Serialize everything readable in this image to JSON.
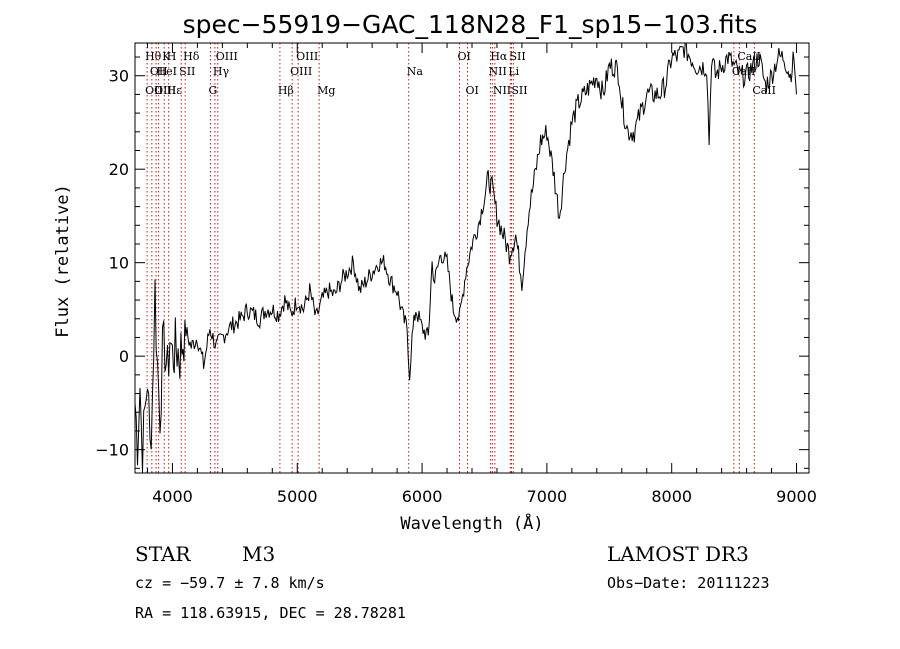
{
  "chart_data": {
    "type": "line",
    "title": "spec−55919−GAC_118N28_F1_sp15−103.fits",
    "xlabel": "Wavelength (Å)",
    "ylabel": "Flux (relative)",
    "xlim": [
      3700,
      9100
    ],
    "ylim": [
      -12.5,
      33.5
    ],
    "xticks": [
      4000,
      5000,
      6000,
      7000,
      8000,
      9000
    ],
    "yticks": [
      -10,
      0,
      10,
      20,
      30
    ],
    "grid": false,
    "series": [
      {
        "name": "spectrum",
        "x": [
          3700,
          3720,
          3740,
          3760,
          3780,
          3800,
          3820,
          3840,
          3860,
          3880,
          3900,
          3920,
          3940,
          3960,
          3980,
          4000,
          4030,
          4060,
          4100,
          4150,
          4200,
          4250,
          4300,
          4350,
          4400,
          4450,
          4500,
          4550,
          4600,
          4650,
          4700,
          4750,
          4800,
          4850,
          4900,
          4950,
          5000,
          5050,
          5100,
          5150,
          5200,
          5250,
          5300,
          5350,
          5400,
          5450,
          5500,
          5550,
          5600,
          5650,
          5700,
          5750,
          5800,
          5850,
          5880,
          5900,
          5920,
          5950,
          6000,
          6050,
          6080,
          6100,
          6150,
          6200,
          6250,
          6300,
          6350,
          6400,
          6450,
          6500,
          6530,
          6560,
          6600,
          6650,
          6700,
          6750,
          6780,
          6800,
          6850,
          6900,
          6950,
          7000,
          7050,
          7100,
          7150,
          7200,
          7250,
          7300,
          7350,
          7400,
          7450,
          7500,
          7550,
          7580,
          7600,
          7650,
          7700,
          7750,
          7800,
          7850,
          7900,
          7950,
          8000,
          8050,
          8100,
          8150,
          8200,
          8250,
          8280,
          8300,
          8320,
          8350,
          8400,
          8450,
          8500,
          8550,
          8600,
          8650,
          8700,
          8750,
          8800,
          8850,
          8900,
          8950,
          8980,
          9000
        ],
        "values": [
          -5,
          -9,
          -3,
          -11,
          -6,
          -2,
          -10,
          -4,
          7,
          -1,
          -6,
          0,
          1,
          -2,
          2,
          0,
          1,
          0,
          3,
          1,
          2,
          -1,
          3,
          1,
          2,
          3,
          3.5,
          4,
          5,
          4.5,
          4,
          5,
          5,
          4.5,
          6,
          4.5,
          6,
          5,
          7,
          4,
          6,
          7,
          6.5,
          8,
          9,
          10,
          7,
          8,
          9,
          10,
          10,
          8,
          7,
          4,
          3,
          -2,
          2,
          5,
          3,
          2,
          10,
          8,
          11,
          10,
          5,
          4,
          9,
          12,
          14,
          17,
          19,
          18,
          15,
          13,
          11,
          13,
          10,
          8,
          15,
          19,
          23,
          24,
          20,
          15,
          21,
          25,
          27,
          28,
          29,
          30,
          28,
          31,
          31,
          30,
          27,
          24,
          24,
          26,
          28,
          28,
          28,
          29,
          32,
          32,
          33,
          32,
          31,
          31,
          31,
          23,
          32,
          30,
          31,
          32,
          31,
          30,
          30,
          31,
          32,
          29,
          30,
          32,
          32,
          30,
          32,
          28
        ]
      }
    ],
    "line_markers": [
      {
        "w": 3797,
        "top": "Hθ",
        "bot": "OII"
      },
      {
        "w": 3835,
        "mid": "OII"
      },
      {
        "w": 3869,
        "bot": "OIII"
      },
      {
        "w": 3889,
        "mid": "HeI"
      },
      {
        "w": 3934,
        "top": "K"
      },
      {
        "w": 3970,
        "top": "H",
        "bot": "Hε"
      },
      {
        "w": 4070,
        "mid": "SII"
      },
      {
        "w": 4102,
        "top": "Hδ"
      },
      {
        "w": 4305,
        "bot": "G"
      },
      {
        "w": 4340,
        "mid": "Hγ"
      },
      {
        "w": 4363,
        "top": "OIII"
      },
      {
        "w": 4861,
        "bot": "Hβ"
      },
      {
        "w": 4959,
        "mid": "OIII"
      },
      {
        "w": 5007,
        "top": "OIII"
      },
      {
        "w": 5175,
        "bot": "Mg"
      },
      {
        "w": 5893,
        "mid": "Na"
      },
      {
        "w": 6300,
        "top": "OI"
      },
      {
        "w": 6364,
        "bot": "OI"
      },
      {
        "w": 6548,
        "mid": "NII"
      },
      {
        "w": 6563,
        "top": "Hα"
      },
      {
        "w": 6583,
        "bot": "NII"
      },
      {
        "w": 6707,
        "mid": "Li"
      },
      {
        "w": 6716,
        "top": "SII"
      },
      {
        "w": 6731,
        "bot": "SII"
      },
      {
        "w": 8498,
        "mid": "CaII"
      },
      {
        "w": 8542,
        "top": "CaII"
      },
      {
        "w": 8662,
        "bot": "CaII"
      }
    ]
  },
  "info": {
    "class": "STAR",
    "subclass": "M3",
    "survey": "LAMOST DR3",
    "cz": "cz = −59.7 ± 7.8 km/s",
    "obs_date": "Obs−Date: 20111223",
    "coords": "RA = 118.63915, DEC =  28.78281"
  },
  "colors": {
    "spectrum": "#000000",
    "marker": "#b22222"
  }
}
